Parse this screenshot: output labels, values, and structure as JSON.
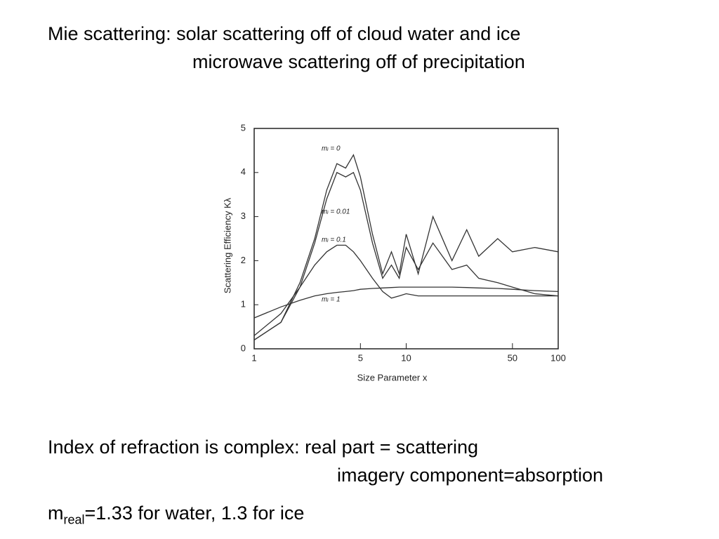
{
  "header": {
    "line1": "Mie scattering: solar scattering off of cloud water and ice",
    "line2": "microwave scattering off of precipitation"
  },
  "chart_data": {
    "type": "line",
    "x_scale": "log",
    "xlabel": "Size Parameter x",
    "ylabel": "Scattering Efficiency Kλ",
    "x": [
      1,
      1.5,
      2,
      2.5,
      3,
      3.5,
      4,
      4.5,
      5,
      6,
      7,
      8,
      9,
      10,
      12,
      15,
      20,
      25,
      30,
      40,
      50,
      70,
      100
    ],
    "series": [
      {
        "name": "mᵢ = 0",
        "color": "#333333",
        "values": [
          0.2,
          0.6,
          1.5,
          2.5,
          3.6,
          4.2,
          4.1,
          4.4,
          3.9,
          2.6,
          1.7,
          2.2,
          1.7,
          2.6,
          1.7,
          3.0,
          2.0,
          2.7,
          2.1,
          2.5,
          2.2,
          2.3,
          2.2
        ]
      },
      {
        "name": "mᵢ = 0.01",
        "color": "#333333",
        "values": [
          0.2,
          0.6,
          1.4,
          2.4,
          3.4,
          4.0,
          3.9,
          4.0,
          3.6,
          2.4,
          1.6,
          1.9,
          1.6,
          2.3,
          1.8,
          2.4,
          1.8,
          1.9,
          1.6,
          1.5,
          1.4,
          1.25,
          1.2
        ]
      },
      {
        "name": "mᵢ = 0.1",
        "color": "#333333",
        "values": [
          0.3,
          0.8,
          1.4,
          1.9,
          2.2,
          2.35,
          2.35,
          2.2,
          2.0,
          1.6,
          1.3,
          1.15,
          1.2,
          1.25,
          1.2,
          1.2,
          1.2,
          1.2,
          1.2,
          1.2,
          1.2,
          1.2,
          1.2
        ]
      },
      {
        "name": "mᵢ = 1",
        "color": "#333333",
        "values": [
          0.7,
          0.95,
          1.1,
          1.2,
          1.25,
          1.28,
          1.3,
          1.32,
          1.35,
          1.37,
          1.38,
          1.39,
          1.4,
          1.4,
          1.4,
          1.4,
          1.4,
          1.39,
          1.38,
          1.37,
          1.35,
          1.32,
          1.3
        ]
      }
    ],
    "xlim": [
      1,
      100
    ],
    "xticks": [
      1,
      5,
      10,
      50,
      100
    ],
    "ylim": [
      0,
      5
    ],
    "yticks": [
      0,
      1,
      2,
      3,
      4,
      5
    ]
  },
  "footer": {
    "line1": "Index of refraction is complex: real part = scattering",
    "line2": "imagery component=absorption",
    "m": "m",
    "sub": "real",
    "rest": "=1.33 for water, 1.3 for ice"
  }
}
